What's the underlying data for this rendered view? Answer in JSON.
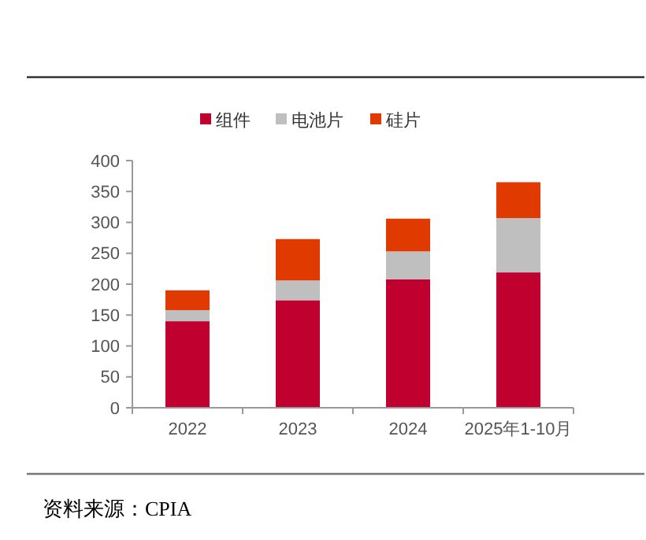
{
  "chart_data": {
    "type": "bar",
    "stacked": true,
    "categories": [
      "2022",
      "2023",
      "2024",
      "2025年1-10月"
    ],
    "series": [
      {
        "name": "组件",
        "color": "#c0002f",
        "values": [
          140,
          174,
          208,
          219
        ]
      },
      {
        "name": "电池片",
        "color": "#bfbfbf",
        "values": [
          18,
          32,
          45,
          88
        ]
      },
      {
        "name": "硅片",
        "color": "#e03a00",
        "values": [
          32,
          67,
          53,
          58
        ]
      }
    ],
    "ylim": [
      0,
      400
    ],
    "yticks": [
      0,
      50,
      100,
      150,
      200,
      250,
      300,
      350,
      400
    ],
    "grid": false,
    "legend": "top",
    "annotations": [
      "资料来源：CPIA"
    ]
  }
}
